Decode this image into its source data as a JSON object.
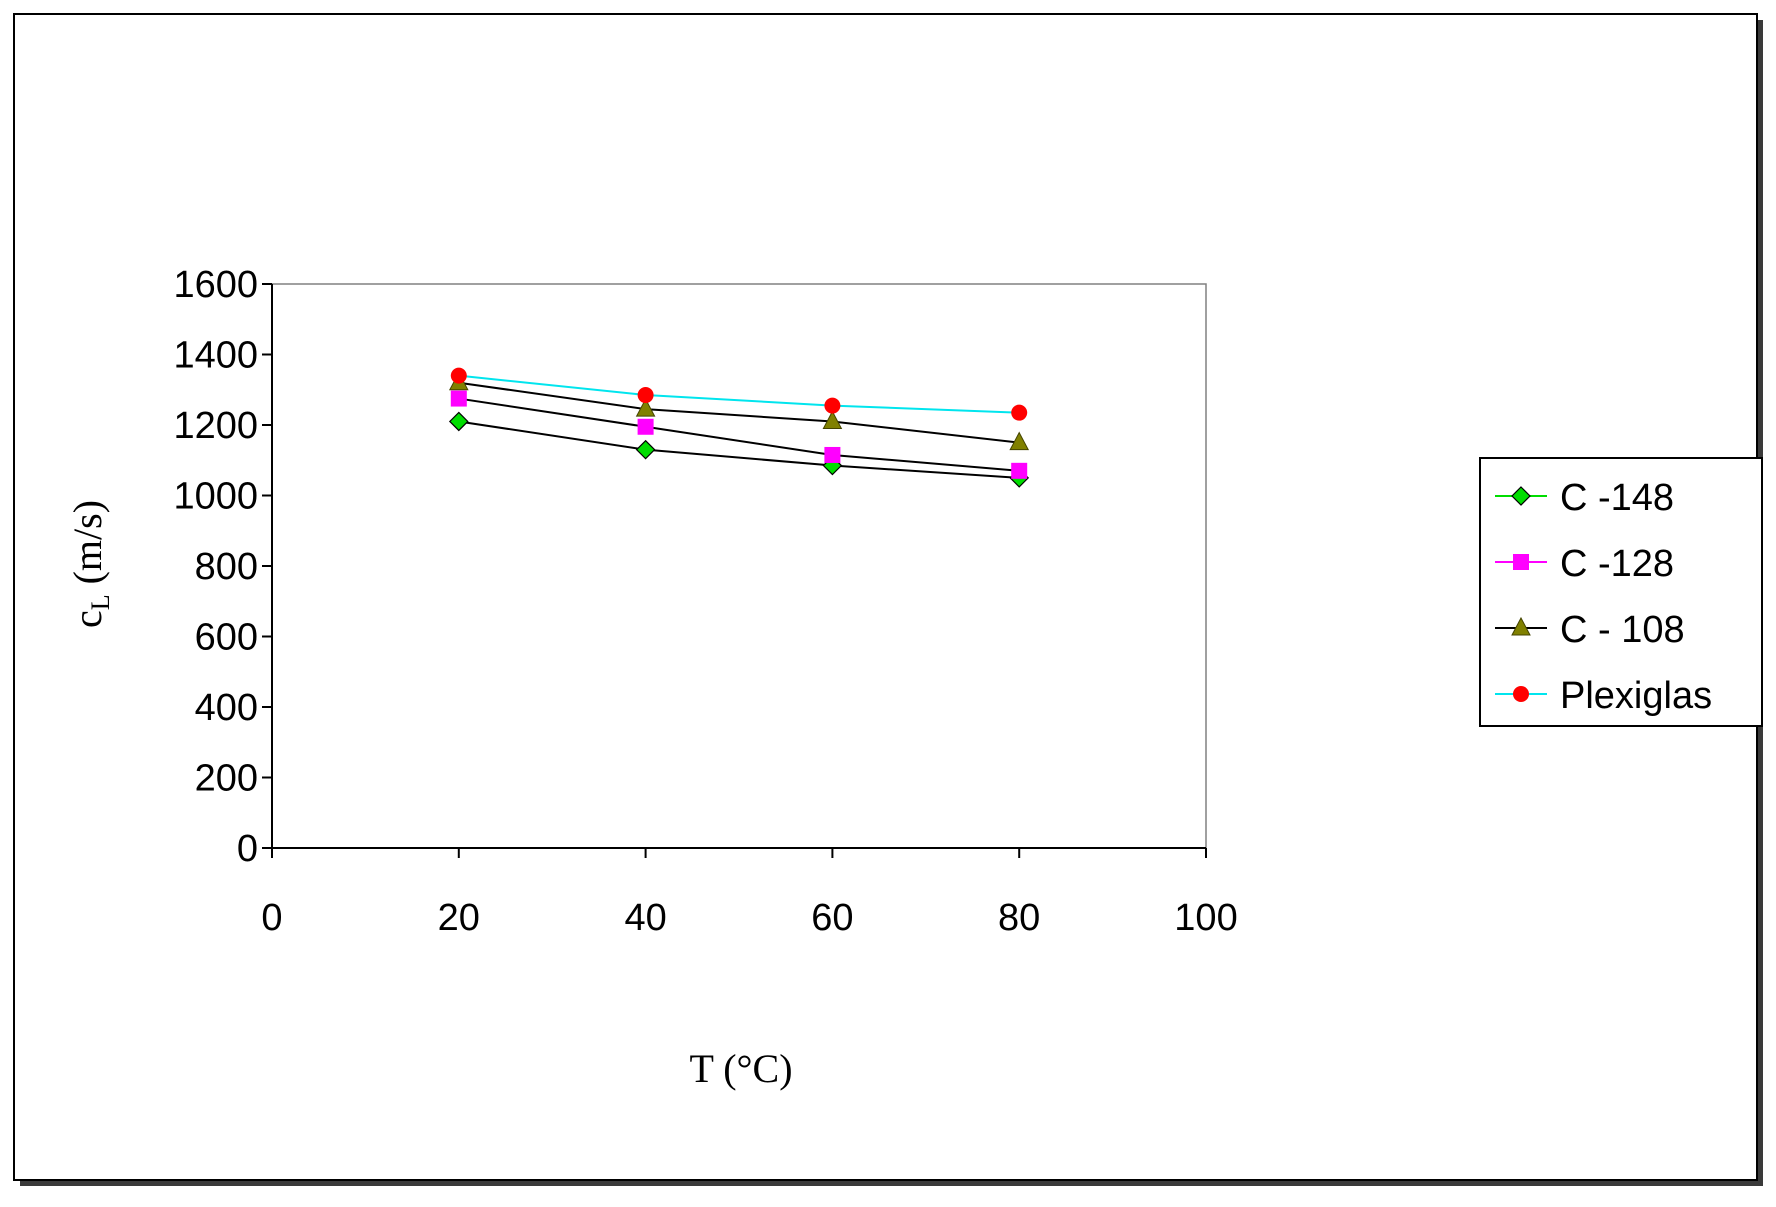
{
  "chart_data": {
    "type": "line",
    "title": "",
    "xlabel": "T (°C)",
    "ylabel": "cL (m/s)",
    "ylabel_main": "c",
    "ylabel_sub": "L",
    "ylabel_unit": " (m/s)",
    "xlim": [
      0,
      100
    ],
    "ylim": [
      0,
      1600
    ],
    "x_ticks": [
      0,
      20,
      40,
      60,
      80,
      100
    ],
    "y_ticks": [
      0,
      200,
      400,
      600,
      800,
      1000,
      1200,
      1400,
      1600
    ],
    "grid": false,
    "legend_position": "right",
    "x": [
      20,
      40,
      60,
      80
    ],
    "series": [
      {
        "name": "C -148",
        "values": [
          1210,
          1130,
          1085,
          1050
        ],
        "line_color": "#000000",
        "marker": "diamond",
        "marker_color": "#00dd00",
        "legend_line_color": "#00dd00"
      },
      {
        "name": "C -128",
        "values": [
          1275,
          1195,
          1115,
          1070
        ],
        "line_color": "#000000",
        "marker": "square",
        "marker_color": "#ff00ff",
        "legend_line_color": "#ff00ff"
      },
      {
        "name": "C - 108",
        "values": [
          1320,
          1245,
          1210,
          1150
        ],
        "line_color": "#000000",
        "marker": "triangle",
        "marker_color": "#808000",
        "legend_line_color": "#000000"
      },
      {
        "name": "Plexiglas",
        "values": [
          1340,
          1285,
          1255,
          1235
        ],
        "line_color": "#00e5ee",
        "marker": "circle",
        "marker_color": "#ff0000",
        "legend_line_color": "#00e5ee"
      }
    ]
  }
}
